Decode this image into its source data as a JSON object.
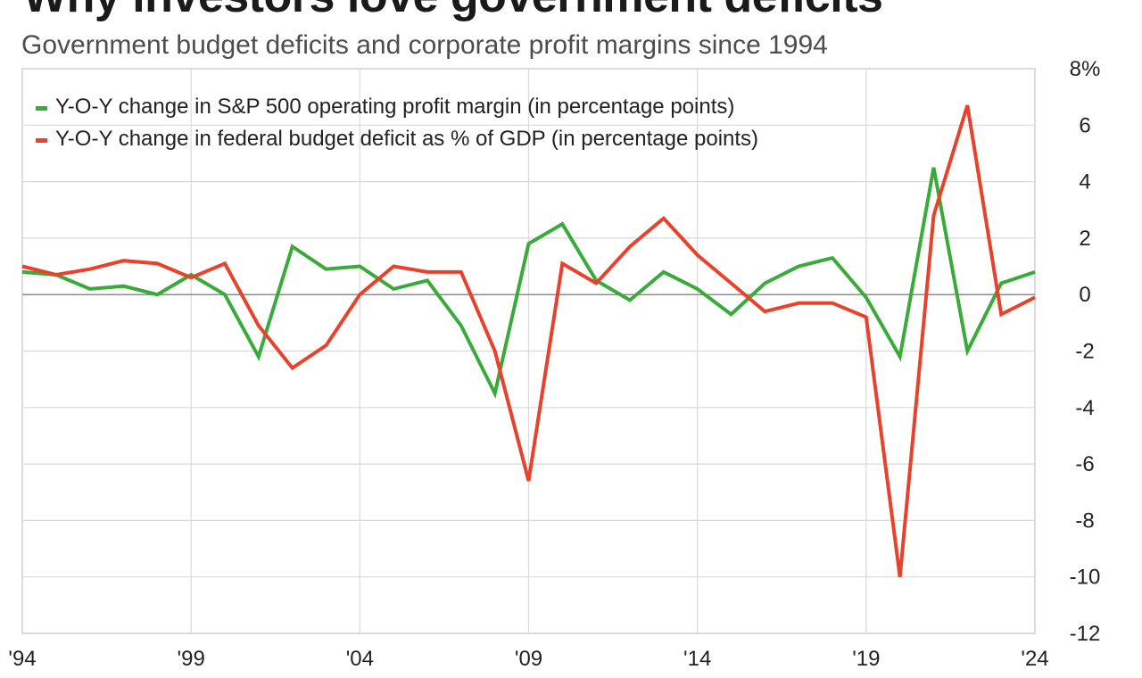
{
  "header": {
    "title": "Why investors love government deficits",
    "subtitle": "Government budget deficits and corporate profit margins since 1994"
  },
  "chart_data": {
    "type": "line",
    "title": "Why investors love government deficits",
    "subtitle": "Government budget deficits and corporate profit margins since 1994",
    "xlabel": "",
    "ylabel": "",
    "x": [
      1994,
      1995,
      1996,
      1997,
      1998,
      1999,
      2000,
      2001,
      2002,
      2003,
      2004,
      2005,
      2006,
      2007,
      2008,
      2009,
      2010,
      2011,
      2012,
      2013,
      2014,
      2015,
      2016,
      2017,
      2018,
      2019,
      2020,
      2021,
      2022,
      2023,
      2024
    ],
    "x_tick_values": [
      1994,
      1999,
      2004,
      2009,
      2014,
      2019,
      2024
    ],
    "x_tick_labels": [
      "'94",
      "'99",
      "'04",
      "'09",
      "'14",
      "'19",
      "'24"
    ],
    "xlim": [
      1994,
      2024
    ],
    "ylim": [
      -12,
      8
    ],
    "y_tick_values": [
      8,
      6,
      4,
      2,
      0,
      -2,
      -4,
      -6,
      -8,
      -10,
      -12
    ],
    "y_tick_labels": [
      "8%",
      "6",
      "4",
      "2",
      "0",
      "-2",
      "-4",
      "-6",
      "-8",
      "-10",
      "-12"
    ],
    "y_axis_side": "right",
    "grid": true,
    "legend_position": "top-left",
    "series": [
      {
        "name": "Y-O-Y change in S&P 500 operating profit margin (in percentage points)",
        "color": "#3aab3a",
        "values": [
          0.8,
          0.7,
          0.2,
          0.3,
          0.0,
          0.7,
          0.0,
          -2.2,
          1.7,
          0.9,
          1.0,
          0.2,
          0.5,
          -1.1,
          -3.5,
          1.8,
          2.5,
          0.5,
          -0.2,
          0.8,
          0.2,
          -0.7,
          0.4,
          1.0,
          1.3,
          -0.1,
          -2.2,
          4.5,
          -2.0,
          0.4,
          0.8
        ]
      },
      {
        "name": "Y-O-Y change in federal budget deficit as % of GDP (in percentage points)",
        "color": "#e8412c",
        "values": [
          1.0,
          0.7,
          0.9,
          1.2,
          1.1,
          0.6,
          1.1,
          -1.1,
          -2.6,
          -1.8,
          0.0,
          1.0,
          0.8,
          0.8,
          -2.0,
          -6.6,
          1.1,
          0.4,
          1.7,
          2.7,
          1.4,
          0.4,
          -0.6,
          -0.3,
          -0.3,
          -0.8,
          -10.0,
          2.8,
          6.7,
          -0.7,
          -0.1
        ]
      }
    ]
  }
}
